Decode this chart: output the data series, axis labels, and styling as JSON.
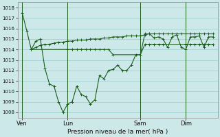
{
  "background_color": "#cce8e8",
  "grid_color": "#99cccc",
  "line_color": "#1a5c1a",
  "xlabel": "Pression niveau de la mer( hPa )",
  "ylim": [
    1007.5,
    1018.5
  ],
  "yticks": [
    1008,
    1009,
    1010,
    1011,
    1012,
    1013,
    1014,
    1015,
    1016,
    1017,
    1018
  ],
  "xtick_labels": [
    "Ven",
    "Lun",
    "Sam",
    "Dim"
  ],
  "xtick_positions": [
    0,
    10,
    26,
    36
  ],
  "vlines": [
    0,
    10,
    26,
    36
  ],
  "xlim": [
    -1,
    43
  ],
  "series1_x": [
    0,
    1,
    2,
    10,
    11,
    12,
    13,
    14,
    15,
    16,
    17,
    18,
    19,
    20,
    26,
    27,
    28,
    29,
    30,
    31,
    36,
    37,
    38,
    39,
    40,
    41,
    42
  ],
  "series1_y": [
    1017.5,
    1015.8,
    1014.0,
    1014.0,
    1014.0,
    1014.0,
    1014.0,
    1014.0,
    1014.0,
    1014.0,
    1014.0,
    1014.0,
    1014.0,
    1013.5,
    1013.5,
    1014.5,
    1014.5,
    1014.5,
    1014.5,
    1014.5,
    1014.5,
    1014.5,
    1014.5,
    1014.5,
    1014.5,
    1014.5,
    1014.5
  ],
  "series2_x": [
    2,
    3,
    4,
    5,
    6,
    7,
    8,
    9,
    10,
    11,
    12,
    13,
    14,
    15,
    16,
    17,
    18,
    19,
    20,
    21,
    22,
    23,
    24,
    25,
    26,
    27,
    28,
    29,
    30,
    31,
    32,
    33,
    34,
    35,
    36,
    37,
    38,
    39,
    40,
    41,
    42
  ],
  "series2_y": [
    1014.0,
    1014.8,
    1015.0,
    1012.2,
    1010.7,
    1010.5,
    1009.0,
    1008.0,
    1008.8,
    1009.0,
    1010.5,
    1009.7,
    1009.5,
    1008.8,
    1009.2,
    1011.5,
    1011.2,
    1012.0,
    1012.1,
    1012.5,
    1012.0,
    1012.0,
    1012.5,
    1013.5,
    1013.5,
    1015.5,
    1015.5,
    1015.1,
    1015.2,
    1015.0,
    1014.2,
    1015.2,
    1015.4,
    1014.2,
    1014.0,
    1015.2,
    1015.2,
    1015.3,
    1014.2,
    1015.2,
    1015.2
  ],
  "series3_x": [
    2,
    3,
    4,
    5,
    6,
    7,
    8,
    9,
    10,
    11,
    12,
    13,
    14,
    15,
    16,
    17,
    18,
    19,
    20,
    21,
    22,
    23,
    24,
    25,
    26,
    27,
    28,
    29,
    30,
    31,
    32,
    33,
    34,
    35,
    36,
    37,
    38,
    39,
    40,
    41,
    42
  ],
  "series3_y": [
    1014.0,
    1014.2,
    1014.4,
    1014.5,
    1014.5,
    1014.6,
    1014.7,
    1014.7,
    1014.8,
    1014.8,
    1014.9,
    1014.9,
    1014.9,
    1015.0,
    1015.0,
    1015.0,
    1015.1,
    1015.1,
    1015.2,
    1015.2,
    1015.2,
    1015.3,
    1015.3,
    1015.3,
    1015.3,
    1015.4,
    1015.5,
    1015.5,
    1015.5,
    1015.5,
    1015.5,
    1015.5,
    1015.5,
    1015.5,
    1015.5,
    1015.5,
    1015.5,
    1015.5,
    1015.5,
    1015.5,
    1015.5
  ]
}
